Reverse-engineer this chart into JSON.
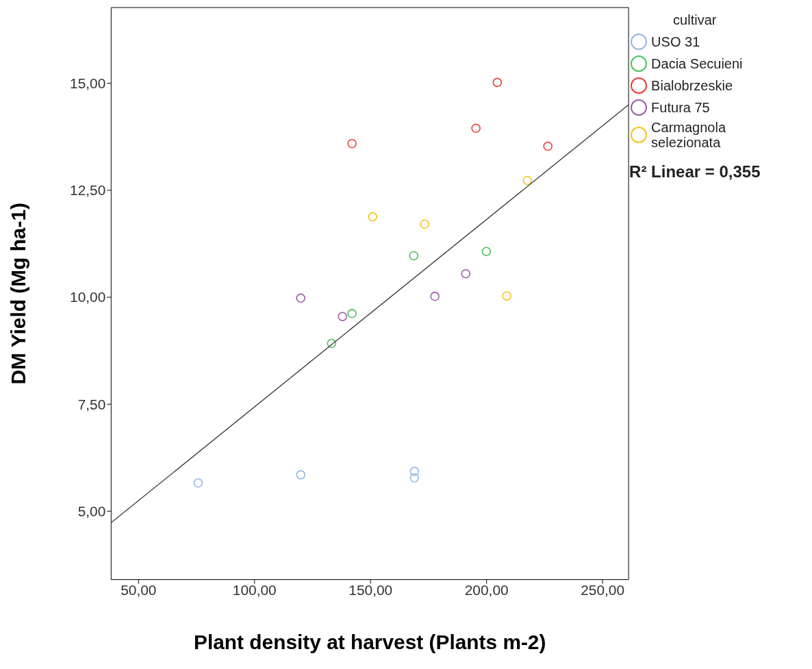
{
  "chart_data": {
    "type": "scatter",
    "xlabel": "Plant density at harvest (Plants m-2)",
    "ylabel": "DM Yield (Mg ha-1)",
    "legend_title": "cultivar",
    "legend": "right",
    "grid": false,
    "marker": "circle",
    "xlim": [
      38.2,
      261.2
    ],
    "ylim": [
      3.4,
      16.77
    ],
    "xticks": [
      {
        "value": 50,
        "label": "50,00"
      },
      {
        "value": 100,
        "label": "100,00"
      },
      {
        "value": 150,
        "label": "150,00"
      },
      {
        "value": 200,
        "label": "200,00"
      },
      {
        "value": 250,
        "label": "250,00"
      }
    ],
    "yticks": [
      {
        "value": 5,
        "label": "5,00"
      },
      {
        "value": 7.5,
        "label": "7,50"
      },
      {
        "value": 10,
        "label": "10,00"
      },
      {
        "value": 12.5,
        "label": "12,50"
      },
      {
        "value": 15,
        "label": "15,00"
      }
    ],
    "annotations": [
      "R² Linear = 0,355"
    ],
    "series": [
      {
        "name": "USO 31",
        "color": "#93b8e3",
        "x": [
          75.7,
          119.9,
          168.9,
          168.9
        ],
        "values": [
          5.66,
          5.85,
          5.93,
          5.78
        ]
      },
      {
        "name": "Dacia Secuieni",
        "color": "#4fc05a",
        "x": [
          133.2,
          142.0,
          168.6,
          199.9
        ],
        "values": [
          8.92,
          9.62,
          10.97,
          11.07
        ]
      },
      {
        "name": "Bialobrzeskie",
        "color": "#f03a36",
        "x": [
          142.0,
          195.4,
          204.6,
          226.4
        ],
        "values": [
          13.59,
          13.95,
          15.02,
          13.53
        ]
      },
      {
        "name": "Futura 75",
        "color": "#9c5aa8",
        "x": [
          119.9,
          137.9,
          177.7,
          191.0
        ],
        "values": [
          9.98,
          9.55,
          10.02,
          10.55
        ]
      },
      {
        "name": "Carmagnola selezionata",
        "color": "#f5c518",
        "x": [
          150.9,
          173.3,
          217.6,
          208.7
        ],
        "values": [
          11.88,
          11.71,
          12.73,
          10.03
        ]
      },
      {
        "type": "line",
        "marker": "none",
        "color": "#333333",
        "x": [
          38.2,
          261.2
        ],
        "values": [
          4.73,
          14.5
        ]
      }
    ]
  }
}
